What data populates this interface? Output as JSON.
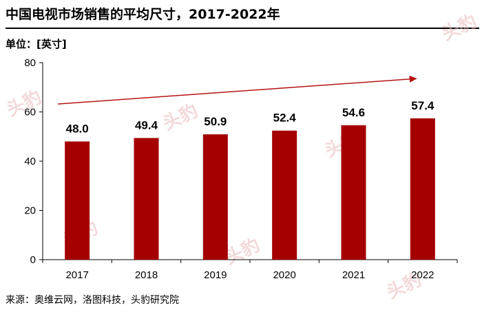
{
  "header": {
    "title": "中国电视市场销售的平均尺寸，2017-2022年",
    "unit": "单位：[英寸]"
  },
  "footer": {
    "source": "来源：奥维云网，洛图科技，头豹研究院"
  },
  "watermark": {
    "text": "头豹"
  },
  "colors": {
    "bar": "#a50000",
    "trend_arrow": "#b51212",
    "axis": "#000000"
  },
  "chart_data": {
    "type": "bar",
    "title": "中国电视市场销售的平均尺寸，2017-2022年",
    "ylabel": "单位：[英寸]",
    "xlabel": "",
    "categories": [
      "2017",
      "2018",
      "2019",
      "2020",
      "2021",
      "2022"
    ],
    "values": [
      48.0,
      49.4,
      50.9,
      52.4,
      54.6,
      57.4
    ],
    "value_labels": [
      "48.0",
      "49.4",
      "50.9",
      "52.4",
      "54.6",
      "57.4"
    ],
    "ylim": [
      0,
      80
    ],
    "yticks": [
      0,
      20,
      40,
      60,
      80
    ],
    "grid": false,
    "annotations": [
      "upward trend arrow"
    ]
  }
}
